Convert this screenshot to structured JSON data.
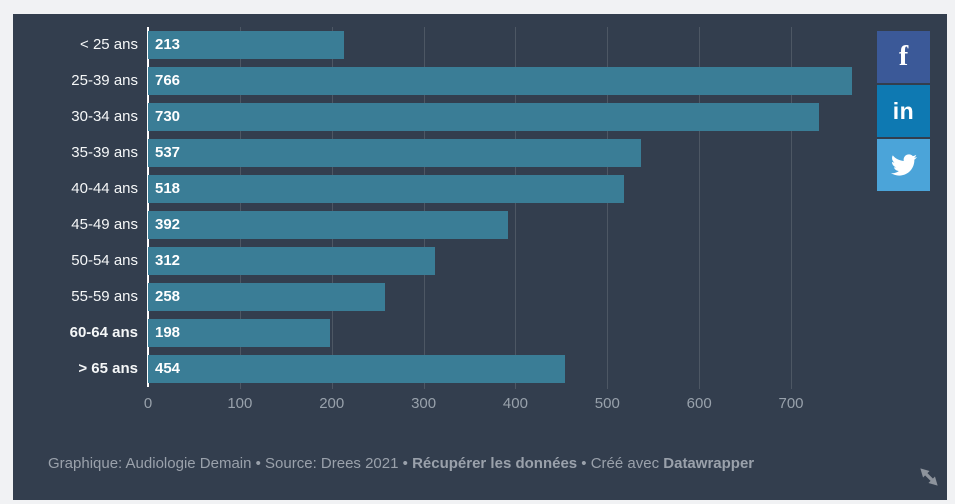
{
  "chart_data": {
    "type": "bar",
    "orientation": "horizontal",
    "title": "",
    "categories": [
      "< 25 ans",
      "25-39 ans",
      "30-34 ans",
      "35-39 ans",
      "40-44 ans",
      "45-49 ans",
      "50-54 ans",
      "55-59 ans",
      "60-64 ans",
      "> 65 ans"
    ],
    "values": [
      213,
      766,
      730,
      537,
      518,
      392,
      312,
      258,
      198,
      454
    ],
    "category_bold": [
      false,
      false,
      false,
      false,
      false,
      false,
      false,
      false,
      true,
      true
    ],
    "x_ticks": [
      0,
      100,
      200,
      300,
      400,
      500,
      600,
      700
    ],
    "xlim": [
      0,
      766
    ],
    "grid": "vertical",
    "legend": "none",
    "value_labels": "inside-left"
  },
  "colors": {
    "panel_bg": "#333e4e",
    "bar": "#3a7d96",
    "bar_label": "#ffffff",
    "category_label": "#f5f7f8",
    "axis_text": "#98a1ab",
    "footer_text": "#9aa1ab",
    "gridline": "rgba(255,255,255,0.13)",
    "baseline": "#ffffff"
  },
  "footer": {
    "segments": [
      {
        "text": "Graphique: Audiologie Demain • Source: Drees 2021 • ",
        "bold": false,
        "link": false,
        "name": "footer-attribution"
      },
      {
        "text": "Récupérer les données",
        "bold": true,
        "link": true,
        "name": "footer-link-get-data"
      },
      {
        "text": " • Créé avec ",
        "bold": false,
        "link": false,
        "name": "footer-created-with"
      },
      {
        "text": "Datawrapper",
        "bold": true,
        "link": true,
        "name": "footer-link-datawrapper"
      }
    ]
  },
  "share_buttons": [
    {
      "name": "facebook-share-button",
      "icon": "facebook-icon",
      "glyph": "f",
      "color": "#3b5998"
    },
    {
      "name": "linkedin-share-button",
      "icon": "linkedin-icon",
      "glyph": "in",
      "color": "#0e79b2"
    },
    {
      "name": "twitter-share-button",
      "icon": "twitter-icon",
      "glyph": "twitter-bird",
      "color": "#4ba4d9"
    }
  ],
  "resize_handle": {
    "icon": "resize-diagonal-icon",
    "color": "#8d939c"
  }
}
